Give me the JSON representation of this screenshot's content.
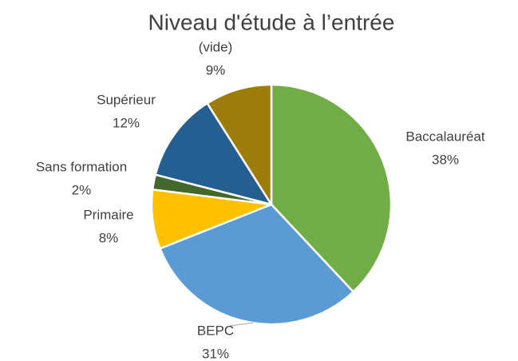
{
  "chart_data": {
    "type": "pie",
    "title": "Niveau d'étude à l’entrée",
    "categories": [
      "Baccalauréat",
      "BEPC",
      "Primaire",
      "Sans formation",
      "Supérieur",
      "(vide)"
    ],
    "values": [
      38,
      31,
      8,
      2,
      12,
      9
    ],
    "value_labels": [
      "38%",
      "31%",
      "8%",
      "2%",
      "12%",
      "9%"
    ],
    "colors": [
      "#70ad47",
      "#5b9bd5",
      "#ffc000",
      "#43682b",
      "#255e91",
      "#9e7c0c"
    ]
  }
}
